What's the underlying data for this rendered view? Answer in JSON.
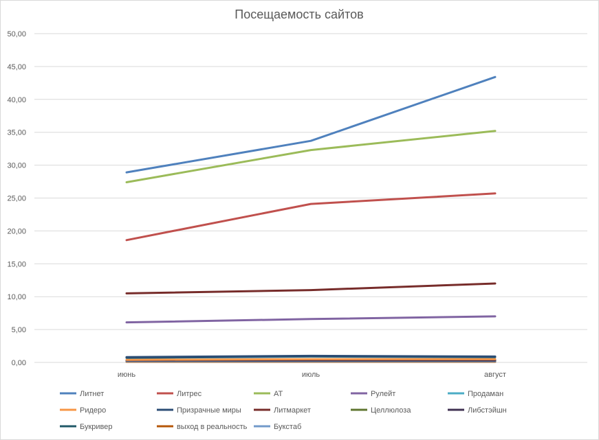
{
  "chart_data": {
    "type": "line",
    "title": "Посещаемость сайтов",
    "categories": [
      "июнь",
      "июль",
      "август"
    ],
    "ylim": [
      0,
      50
    ],
    "yticks": [
      "0,00",
      "5,00",
      "10,00",
      "15,00",
      "20,00",
      "25,00",
      "30,00",
      "35,00",
      "40,00",
      "45,00",
      "50,00"
    ],
    "grid": true,
    "legend_position": "bottom",
    "series": [
      {
        "name": "Литнет",
        "color": "#4F81BD",
        "values": [
          28.9,
          33.7,
          43.4
        ]
      },
      {
        "name": "Литрес",
        "color": "#C0504D",
        "values": [
          18.6,
          24.1,
          25.7
        ]
      },
      {
        "name": "АТ",
        "color": "#9BBB59",
        "values": [
          27.4,
          32.3,
          35.2
        ]
      },
      {
        "name": "Рулейт",
        "color": "#8064A2",
        "values": [
          6.1,
          6.6,
          7.0
        ]
      },
      {
        "name": "Продаман",
        "color": "#4BACC6",
        "values": [
          0.3,
          0.3,
          0.3
        ]
      },
      {
        "name": "Ридеро",
        "color": "#F79646",
        "values": [
          0.4,
          0.5,
          0.5
        ]
      },
      {
        "name": "Призрачные миры",
        "color": "#2C4D75",
        "values": [
          0.8,
          1.0,
          0.9
        ]
      },
      {
        "name": "Литмаркет",
        "color": "#772C2A",
        "values": [
          10.5,
          11.0,
          12.0
        ]
      },
      {
        "name": "Целлюлоза",
        "color": "#5F7530",
        "values": [
          0.2,
          0.2,
          0.2
        ]
      },
      {
        "name": "Либстэйшн",
        "color": "#403152",
        "values": [
          0.3,
          0.3,
          0.3
        ]
      },
      {
        "name": "Букривер",
        "color": "#215968",
        "values": [
          0.7,
          0.9,
          0.8
        ]
      },
      {
        "name": "выход в реальность",
        "color": "#B65708",
        "values": [
          0.1,
          0.1,
          0.1
        ]
      },
      {
        "name": "Букстаб",
        "color": "#729ACA",
        "values": [
          0.2,
          0.2,
          0.2
        ]
      }
    ]
  }
}
